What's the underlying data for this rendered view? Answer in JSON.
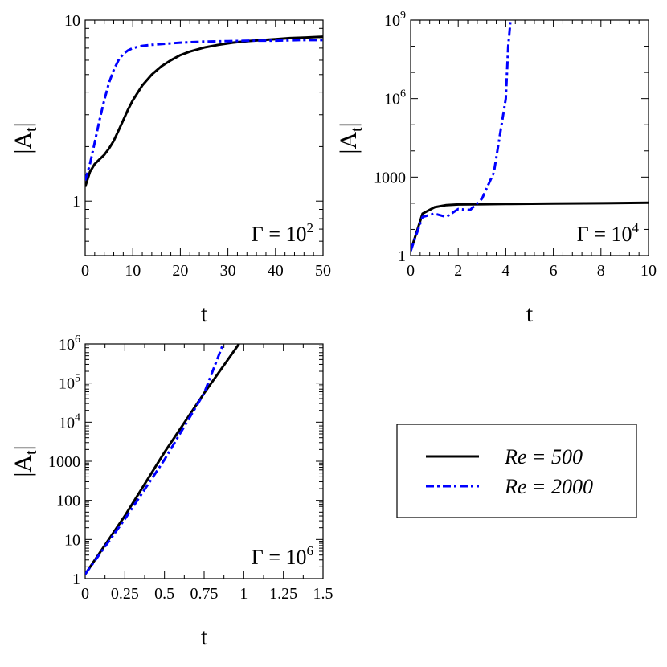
{
  "chart_data": [
    {
      "type": "line",
      "xlabel": "t",
      "ylabel": "|A",
      "ylabel_sub": "t",
      "ylabel_close": "|",
      "xscale": "linear",
      "yscale": "log",
      "xlim": [
        0,
        50
      ],
      "ylim": [
        0.5,
        10
      ],
      "xticks": [
        0,
        10,
        20,
        30,
        40,
        50
      ],
      "xtick_labels": [
        "0",
        "10",
        "20",
        "30",
        "40",
        "50"
      ],
      "yticks": [
        1,
        10
      ],
      "ytick_labels": [
        [
          "1"
        ],
        [
          "10"
        ]
      ],
      "annotation": {
        "base": "Γ = 10",
        "exp": "2"
      },
      "series": [
        {
          "name": "Re = 500",
          "color": "#000000",
          "dash": "solid",
          "x": [
            0,
            1,
            2,
            3,
            4,
            5,
            6,
            7,
            8,
            9,
            10,
            12,
            14,
            16,
            18,
            20,
            22,
            25,
            28,
            31,
            34,
            37,
            40,
            43,
            46,
            50
          ],
          "y": [
            1.2,
            1.45,
            1.6,
            1.7,
            1.8,
            1.95,
            2.15,
            2.45,
            2.8,
            3.2,
            3.6,
            4.35,
            5.0,
            5.55,
            6.0,
            6.4,
            6.7,
            7.05,
            7.3,
            7.5,
            7.65,
            7.75,
            7.85,
            7.95,
            8.0,
            8.1
          ]
        },
        {
          "name": "Re = 2000",
          "color": "#0000ff",
          "dash": "dashdot",
          "x": [
            0,
            1,
            2,
            3,
            4,
            5,
            6,
            7,
            8,
            9,
            10,
            12,
            14,
            17,
            20,
            25,
            30,
            35,
            40,
            45,
            50
          ],
          "y": [
            1.3,
            1.6,
            2.1,
            2.8,
            3.6,
            4.5,
            5.3,
            6.0,
            6.5,
            6.8,
            7.0,
            7.2,
            7.3,
            7.4,
            7.5,
            7.6,
            7.65,
            7.7,
            7.7,
            7.75,
            7.75
          ]
        }
      ]
    },
    {
      "type": "line",
      "xlabel": "t",
      "ylabel": "|A",
      "ylabel_sub": "t",
      "ylabel_close": "|",
      "xscale": "linear",
      "yscale": "log",
      "xlim": [
        0,
        10
      ],
      "ylim": [
        1,
        1000000000
      ],
      "xticks": [
        0,
        2,
        4,
        6,
        8,
        10
      ],
      "xtick_labels": [
        "0",
        "2",
        "4",
        "6",
        "8",
        "10"
      ],
      "yticks": [
        1,
        1000,
        1000000,
        1000000000
      ],
      "ytick_labels": [
        [
          "1"
        ],
        [
          "1000"
        ],
        [
          "10",
          "6"
        ],
        [
          "10",
          "9"
        ]
      ],
      "annotation": {
        "base": "Γ = 10",
        "exp": "4"
      },
      "series": [
        {
          "name": "Re = 500",
          "color": "#000000",
          "dash": "solid",
          "x": [
            0,
            0.5,
            1,
            1.5,
            2,
            3,
            4,
            6,
            8,
            10
          ],
          "y": [
            1.5,
            40,
            70,
            85,
            90,
            92,
            94,
            97,
            100,
            105
          ]
        },
        {
          "name": "Re = 2000",
          "color": "#0000ff",
          "dash": "dashdot",
          "x": [
            0,
            0.5,
            1,
            1.5,
            2,
            2.5,
            3,
            3.5,
            4,
            4.1,
            4.2
          ],
          "y": [
            1.5,
            30,
            40,
            30,
            60,
            55,
            150,
            1500,
            1000000,
            100000000,
            1000000000
          ]
        }
      ]
    },
    {
      "type": "line",
      "xlabel": "t",
      "ylabel": "|A",
      "ylabel_sub": "t",
      "ylabel_close": "|",
      "xscale": "linear",
      "yscale": "log",
      "xlim": [
        0,
        1.5
      ],
      "ylim": [
        1,
        1000000
      ],
      "xticks": [
        0,
        0.25,
        0.5,
        0.75,
        1,
        1.25,
        1.5
      ],
      "xtick_labels": [
        "0",
        "0.25",
        "0.5",
        "0.75",
        "1",
        "1.25",
        "1.5"
      ],
      "yticks": [
        1,
        10,
        100,
        1000,
        10000,
        100000,
        1000000
      ],
      "ytick_labels": [
        [
          "1"
        ],
        [
          "10"
        ],
        [
          "100"
        ],
        [
          "1000"
        ],
        [
          "10",
          "4"
        ],
        [
          "10",
          "5"
        ],
        [
          "10",
          "6"
        ]
      ],
      "annotation": {
        "base": "Γ = 10",
        "exp": "6"
      },
      "series": [
        {
          "name": "Re = 500",
          "color": "#000000",
          "dash": "solid",
          "x": [
            0,
            0.25,
            0.5,
            0.75,
            0.97
          ],
          "y": [
            1.3,
            40,
            1700,
            55000,
            1000000
          ]
        },
        {
          "name": "Re = 2000",
          "color": "#0000ff",
          "dash": "dashdot",
          "x": [
            0,
            0.25,
            0.5,
            0.75,
            0.87
          ],
          "y": [
            1.3,
            33,
            1100,
            55000,
            1000000
          ]
        }
      ]
    }
  ],
  "legend": {
    "entries": [
      {
        "label": "Re = 500",
        "color": "#000000",
        "dash": "solid"
      },
      {
        "label": "Re = 2000",
        "color": "#0000ff",
        "dash": "dashdot"
      }
    ]
  }
}
